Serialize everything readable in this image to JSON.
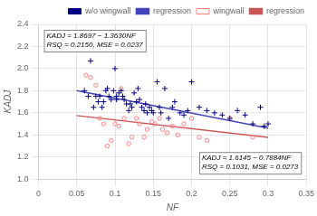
{
  "chart_data": {
    "type": "scatter",
    "xlabel": "NF",
    "ylabel": "KADJ",
    "xlim": [
      0,
      0.35
    ],
    "ylim": [
      1.0,
      2.4
    ],
    "xticks": [
      0,
      0.05,
      0.1,
      0.15,
      0.2,
      0.25,
      0.3,
      0.35
    ],
    "yticks": [
      {
        "value": 1.0,
        "label": "1.0"
      },
      1.2,
      1.4,
      1.6,
      1.8,
      {
        "value": 2.0,
        "label": "2.0"
      },
      2.2,
      2.4
    ],
    "grid": true,
    "legend": "upper right",
    "series": [
      {
        "name": "w/o wingwall",
        "type": "scatter",
        "marker": "+",
        "color": "#000080",
        "x": [
          0.06,
          0.065,
          0.068,
          0.072,
          0.075,
          0.078,
          0.08,
          0.083,
          0.085,
          0.088,
          0.09,
          0.092,
          0.095,
          0.098,
          0.1,
          0.102,
          0.102,
          0.105,
          0.108,
          0.11,
          0.112,
          0.115,
          0.118,
          0.12,
          0.122,
          0.125,
          0.128,
          0.13,
          0.132,
          0.135,
          0.138,
          0.14,
          0.142,
          0.145,
          0.148,
          0.15,
          0.155,
          0.158,
          0.16,
          0.165,
          0.17,
          0.175,
          0.178,
          0.185,
          0.19,
          0.195,
          0.2,
          0.21,
          0.22,
          0.23,
          0.24,
          0.25,
          0.26,
          0.27,
          0.28,
          0.29,
          0.295,
          0.3
        ],
        "values": [
          1.8,
          1.75,
          2.07,
          1.65,
          1.75,
          1.7,
          1.75,
          1.65,
          1.7,
          1.8,
          1.82,
          1.75,
          1.72,
          1.8,
          2.0,
          1.75,
          1.72,
          1.78,
          1.8,
          1.75,
          1.72,
          1.68,
          1.62,
          1.68,
          1.65,
          1.78,
          1.7,
          1.82,
          1.72,
          1.65,
          1.62,
          1.68,
          1.6,
          1.65,
          1.62,
          1.6,
          1.88,
          1.65,
          1.6,
          1.82,
          1.55,
          1.65,
          1.7,
          1.6,
          1.58,
          1.62,
          1.88,
          1.65,
          1.62,
          1.6,
          1.58,
          1.55,
          1.62,
          1.58,
          1.5,
          1.65,
          1.48,
          1.5
        ]
      },
      {
        "name": "regression",
        "type": "line",
        "line_style": "solid",
        "color": "#4444BB",
        "x": [
          0.05,
          0.3
        ],
        "values": [
          1.80155,
          1.4608
        ]
      },
      {
        "name": "wingwall",
        "type": "scatter",
        "marker": "o",
        "color": "#FF8080",
        "x": [
          0.062,
          0.068,
          0.075,
          0.08,
          0.085,
          0.09,
          0.095,
          0.1,
          0.105,
          0.108,
          0.112,
          0.118,
          0.122,
          0.128,
          0.132,
          0.138,
          0.142,
          0.148,
          0.152,
          0.158,
          0.162,
          0.168,
          0.175,
          0.182,
          0.19,
          0.2,
          0.21,
          0.22,
          0.25,
          0.28
        ],
        "values": [
          1.94,
          1.92,
          1.85,
          1.55,
          1.5,
          1.3,
          1.35,
          1.5,
          1.48,
          1.82,
          1.55,
          1.32,
          1.38,
          1.55,
          1.5,
          1.38,
          1.45,
          1.52,
          1.5,
          1.55,
          1.45,
          1.42,
          1.48,
          1.4,
          1.5,
          1.55,
          1.38,
          1.35,
          1.55,
          1.38
        ]
      },
      {
        "name": "regression",
        "type": "line",
        "line_style": "solid",
        "color": "#CC5555",
        "x": [
          0.05,
          0.3
        ],
        "values": [
          1.57508,
          1.37798
        ]
      }
    ],
    "annotations": [
      "KADJ = 1.8697 − 1.3630NF\nRSQ = 0.2150, MSE = 0.0237",
      "KADJ = 1.6145 − 0.7884NF\nRSQ = 0.1031, MSE = 0.0273"
    ]
  }
}
